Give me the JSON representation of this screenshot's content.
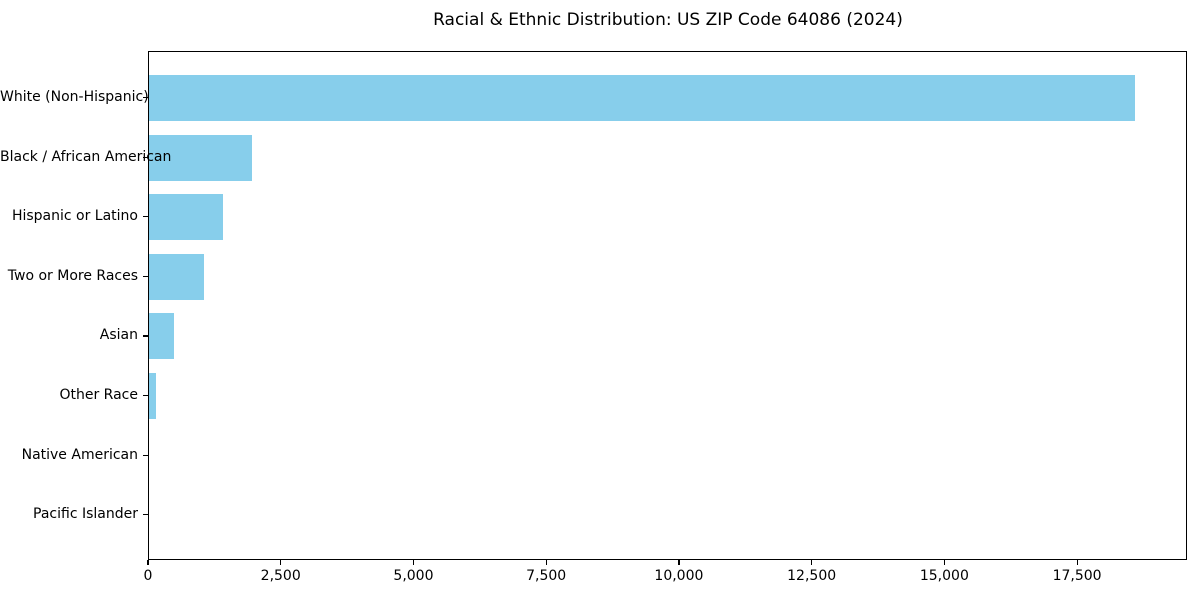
{
  "chart_data": {
    "type": "bar",
    "orientation": "horizontal",
    "title": "Racial & Ethnic Distribution: US ZIP Code 64086 (2024)",
    "xlabel": "",
    "ylabel": "",
    "categories": [
      "White (Non-Hispanic)",
      "Black / African American",
      "Hispanic or Latino",
      "Two or More Races",
      "Asian",
      "Other Race",
      "Native American",
      "Pacific Islander"
    ],
    "values": [
      18600,
      1950,
      1400,
      1040,
      470,
      130,
      0,
      0
    ],
    "xlim": [
      0,
      19570
    ],
    "x_ticks": [
      0,
      2500,
      5000,
      7500,
      10000,
      12500,
      15000,
      17500
    ],
    "x_tick_labels": [
      "0",
      "2,500",
      "5,000",
      "7,500",
      "10,000",
      "12,500",
      "15,000",
      "17,500"
    ],
    "bar_color": "#87CEEB",
    "spine_color": "#000000",
    "grid": false,
    "legend": null
  }
}
